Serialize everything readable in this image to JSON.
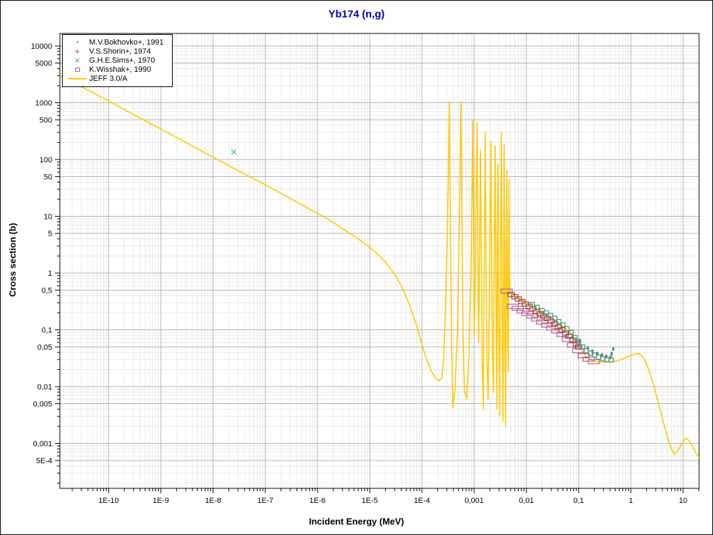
{
  "title": {
    "text": "Yb174 (n,g)",
    "color": "#0000aa"
  },
  "axis_titles": {
    "x": "Incident Energy (MeV)",
    "y": "Cross section (b)"
  },
  "legend": {
    "position": "top-left",
    "items": [
      {
        "label": "M.V.Bokhovko+, 1991",
        "symbol": "dot-marker",
        "glyph": "·",
        "color": "#4f8f78"
      },
      {
        "label": "V.S.Shorin+, 1974",
        "symbol": "plus-marker",
        "glyph": "+",
        "color": "#9c4444"
      },
      {
        "label": "G.H.E.Sims+, 1970",
        "symbol": "x-marker",
        "glyph": "×",
        "color": "#3fae9f"
      },
      {
        "label": "K.Wisshak+, 1990",
        "symbol": "square-marker",
        "glyph": "□",
        "color": "#b4638f"
      },
      {
        "label": "JEFF 3.0/A",
        "symbol": "line-marker",
        "glyph": "—",
        "color": "#ffc800"
      }
    ]
  },
  "colors": {
    "grid_major": "#b3b3b3",
    "grid_minor": "#e9e9e9",
    "frame": "#000000",
    "background": "#ffffff",
    "title": "#0000aa"
  },
  "chart_data": {
    "type": "line",
    "title": "Yb174 (n,g)",
    "xlabel": "Incident Energy (MeV)",
    "ylabel": "Cross section (b)",
    "x_scale": "log",
    "y_scale": "log",
    "x_range": [
      1.17e-11,
      20.3
    ],
    "y_range": [
      0.00017,
      16000
    ],
    "grid": true,
    "legend_position": "top-left",
    "x_ticks": [
      {
        "value": 1e-10,
        "label": "1E-10"
      },
      {
        "value": 1e-09,
        "label": "1E-9"
      },
      {
        "value": 1e-08,
        "label": "1E-8"
      },
      {
        "value": 1e-07,
        "label": "1E-7"
      },
      {
        "value": 1e-06,
        "label": "1E-6"
      },
      {
        "value": 1e-05,
        "label": "1E-5"
      },
      {
        "value": 0.0001,
        "label": "1E-4"
      },
      {
        "value": 0.001,
        "label": "0,001"
      },
      {
        "value": 0.01,
        "label": "0,01"
      },
      {
        "value": 0.1,
        "label": "0,1"
      },
      {
        "value": 1,
        "label": "1"
      },
      {
        "value": 10,
        "label": "10"
      }
    ],
    "y_ticks": [
      {
        "value": 10000,
        "label": "10000"
      },
      {
        "value": 5000,
        "label": "5000"
      },
      {
        "value": 1000,
        "label": "1000"
      },
      {
        "value": 500,
        "label": "500"
      },
      {
        "value": 100,
        "label": "100"
      },
      {
        "value": 50,
        "label": "50"
      },
      {
        "value": 10,
        "label": "10"
      },
      {
        "value": 5,
        "label": "5"
      },
      {
        "value": 1,
        "label": "1"
      },
      {
        "value": 0.5,
        "label": "0,5"
      },
      {
        "value": 0.1,
        "label": "0,1"
      },
      {
        "value": 0.05,
        "label": "0,05"
      },
      {
        "value": 0.01,
        "label": "0,01"
      },
      {
        "value": 0.005,
        "label": "0,005"
      },
      {
        "value": 0.001,
        "label": "0,001"
      },
      {
        "value": 0.0005,
        "label": "5E-4"
      }
    ],
    "series": [
      {
        "name": "JEFF 3.0/A",
        "type": "line",
        "color": "#ffc800",
        "marker": {
          "shape": "line"
        },
        "points": [
          [
            1.17e-11,
            3000
          ],
          [
            2e-11,
            2300
          ],
          [
            5e-11,
            1500
          ],
          [
            1e-10,
            1080
          ],
          [
            2e-10,
            760
          ],
          [
            5e-10,
            480
          ],
          [
            1e-09,
            345
          ],
          [
            2e-09,
            245
          ],
          [
            5e-09,
            155
          ],
          [
            1e-08,
            110
          ],
          [
            2e-08,
            78
          ],
          [
            5e-08,
            50
          ],
          [
            1e-07,
            36
          ],
          [
            2e-07,
            25.5
          ],
          [
            5e-07,
            16
          ],
          [
            1e-06,
            11.3
          ],
          [
            2e-06,
            7.8
          ],
          [
            5e-06,
            4.5
          ],
          [
            1e-05,
            2.85
          ],
          [
            1.5e-05,
            2.05
          ],
          [
            2e-05,
            1.55
          ],
          [
            3e-05,
            0.95
          ],
          [
            4e-05,
            0.6
          ],
          [
            5e-05,
            0.38
          ],
          [
            6e-05,
            0.25
          ],
          [
            8e-05,
            0.115
          ],
          [
            0.0001,
            0.055
          ],
          [
            0.00012,
            0.032
          ],
          [
            0.00015,
            0.019
          ],
          [
            0.00018,
            0.0145
          ],
          [
            0.00021,
            0.0125
          ],
          [
            0.00024,
            0.014
          ],
          [
            0.00026,
            0.03
          ],
          [
            0.00028,
            0.2
          ],
          [
            0.00031,
            8
          ],
          [
            0.000335,
            1050
          ],
          [
            0.00035,
            12
          ],
          [
            0.00037,
            0.05
          ],
          [
            0.00039,
            0.0042
          ],
          [
            0.00043,
            0.009
          ],
          [
            0.00048,
            0.1
          ],
          [
            0.00053,
            20
          ],
          [
            0.00056,
            1050
          ],
          [
            0.00058,
            15
          ],
          [
            0.00061,
            0.1
          ],
          [
            0.00065,
            0.0085
          ],
          [
            0.00072,
            0.006
          ],
          [
            0.0008,
            0.04
          ],
          [
            0.00088,
            2
          ],
          [
            0.00094,
            490
          ],
          [
            0.00097,
            6
          ],
          [
            0.001,
            0.08
          ],
          [
            0.00105,
            0.8
          ],
          [
            0.00113,
            450
          ],
          [
            0.00117,
            4
          ],
          [
            0.00122,
            0.06
          ],
          [
            0.00127,
            3
          ],
          [
            0.00132,
            145
          ],
          [
            0.00137,
            2
          ],
          [
            0.00143,
            0.025
          ],
          [
            0.0015,
            0.004
          ],
          [
            0.00156,
            1.5
          ],
          [
            0.00163,
            310
          ],
          [
            0.00168,
            3
          ],
          [
            0.00175,
            0.03
          ],
          [
            0.00185,
            0.006
          ],
          [
            0.00195,
            0.5
          ],
          [
            0.00209,
            210
          ],
          [
            0.00215,
            3
          ],
          [
            0.00223,
            0.04
          ],
          [
            0.00233,
            0.008
          ],
          [
            0.00243,
            6
          ],
          [
            0.00251,
            175
          ],
          [
            0.00258,
            2
          ],
          [
            0.00266,
            0.05
          ],
          [
            0.00273,
            0.004
          ],
          [
            0.00279,
            5
          ],
          [
            0.00284,
            82
          ],
          [
            0.0029,
            1
          ],
          [
            0.00298,
            0.05
          ],
          [
            0.00308,
            0.003
          ],
          [
            0.0032,
            4
          ],
          [
            0.00331,
            300
          ],
          [
            0.00338,
            3
          ],
          [
            0.00348,
            0.04
          ],
          [
            0.00358,
            0.0025
          ],
          [
            0.00367,
            2
          ],
          [
            0.00374,
            180
          ],
          [
            0.00381,
            1.5
          ],
          [
            0.0039,
            0.03
          ],
          [
            0.004,
            0.002
          ],
          [
            0.00412,
            1
          ],
          [
            0.00423,
            65
          ],
          [
            0.0043,
            0.9
          ],
          [
            0.0044,
            0.08
          ],
          [
            0.0045,
            0.018
          ],
          [
            0.00458,
            2
          ],
          [
            0.00464,
            45
          ],
          [
            0.00472,
            1.2
          ],
          [
            0.00482,
            0.5
          ],
          [
            0.00495,
            0.47
          ],
          [
            0.0055,
            0.43
          ],
          [
            0.007,
            0.37
          ],
          [
            0.009,
            0.32
          ],
          [
            0.012,
            0.27
          ],
          [
            0.016,
            0.225
          ],
          [
            0.022,
            0.185
          ],
          [
            0.03,
            0.155
          ],
          [
            0.04,
            0.13
          ],
          [
            0.05,
            0.115
          ],
          [
            0.06,
            0.1
          ],
          [
            0.07,
            0.088
          ],
          [
            0.08,
            0.072
          ],
          [
            0.09,
            0.058
          ],
          [
            0.105,
            0.047
          ],
          [
            0.125,
            0.038
          ],
          [
            0.15,
            0.0325
          ],
          [
            0.18,
            0.0295
          ],
          [
            0.22,
            0.0278
          ],
          [
            0.3,
            0.027
          ],
          [
            0.4,
            0.0272
          ],
          [
            0.55,
            0.0285
          ],
          [
            0.75,
            0.0315
          ],
          [
            1.0,
            0.0355
          ],
          [
            1.25,
            0.038
          ],
          [
            1.5,
            0.0375
          ],
          [
            1.8,
            0.031
          ],
          [
            2.2,
            0.02
          ],
          [
            2.7,
            0.011
          ],
          [
            3.3,
            0.0055
          ],
          [
            4.0,
            0.0028
          ],
          [
            4.8,
            0.0015
          ],
          [
            5.8,
            0.00085
          ],
          [
            6.8,
            0.00064
          ],
          [
            7.8,
            0.00072
          ],
          [
            9.0,
            0.00092
          ],
          [
            10.5,
            0.00115
          ],
          [
            11.5,
            0.00124
          ],
          [
            13,
            0.00112
          ],
          [
            15,
            0.00092
          ],
          [
            17.5,
            0.00068
          ],
          [
            20.3,
            0.00056
          ]
        ]
      },
      {
        "name": "K.Wisshak+, 1990",
        "type": "scatter",
        "color": "#b4638f",
        "marker": {
          "shape": "open-rect",
          "w": 16,
          "h": 6
        },
        "points": [
          [
            0.0042,
            0.48
          ],
          [
            0.0055,
            0.26
          ],
          [
            0.0068,
            0.24
          ],
          [
            0.0085,
            0.215
          ],
          [
            0.0105,
            0.195
          ],
          [
            0.013,
            0.175
          ],
          [
            0.016,
            0.155
          ],
          [
            0.02,
            0.138
          ],
          [
            0.025,
            0.122
          ],
          [
            0.031,
            0.108
          ],
          [
            0.039,
            0.096
          ],
          [
            0.049,
            0.083
          ],
          [
            0.062,
            0.068
          ],
          [
            0.078,
            0.054
          ],
          [
            0.098,
            0.043
          ],
          [
            0.125,
            0.035
          ],
          [
            0.155,
            0.0305
          ],
          [
            0.195,
            0.0275
          ]
        ]
      },
      {
        "name": "V.S.Shorin+, 1974",
        "type": "scatter",
        "color": "#9c4444",
        "marker": {
          "shape": "open-rect",
          "w": 9,
          "h": 6
        },
        "points": [
          [
            0.0051,
            0.42
          ],
          [
            0.006,
            0.385
          ],
          [
            0.007,
            0.35
          ],
          [
            0.0082,
            0.315
          ],
          [
            0.0096,
            0.285
          ],
          [
            0.0113,
            0.26
          ],
          [
            0.0133,
            0.235
          ],
          [
            0.0156,
            0.213
          ],
          [
            0.0183,
            0.193
          ],
          [
            0.0215,
            0.175
          ],
          [
            0.0252,
            0.158
          ],
          [
            0.0296,
            0.142
          ],
          [
            0.0347,
            0.127
          ],
          [
            0.0408,
            0.113
          ],
          [
            0.0479,
            0.1
          ],
          [
            0.0562,
            0.088
          ],
          [
            0.066,
            0.077
          ],
          [
            0.0774,
            0.066
          ],
          [
            0.0909,
            0.056
          ],
          [
            0.1,
            0.05
          ]
        ]
      },
      {
        "name": "M.V.Bokhovko+, 1991",
        "type": "scatter",
        "color": "#4f8f78",
        "marker": {
          "shape": "open-rect",
          "w": 6,
          "h": 6
        },
        "points": [
          [
            0.013,
            0.28
          ],
          [
            0.016,
            0.25
          ],
          [
            0.02,
            0.22
          ],
          [
            0.024,
            0.2
          ],
          [
            0.029,
            0.18
          ],
          [
            0.035,
            0.16
          ],
          [
            0.042,
            0.14
          ],
          [
            0.05,
            0.122
          ],
          [
            0.06,
            0.105
          ],
          [
            0.072,
            0.09
          ],
          [
            0.086,
            0.073
          ],
          [
            0.1,
            0.06
          ],
          [
            0.12,
            0.05
          ],
          [
            0.14,
            0.043
          ],
          [
            0.17,
            0.039
          ],
          [
            0.2,
            0.036
          ],
          [
            0.24,
            0.033
          ],
          [
            0.29,
            0.031
          ],
          [
            0.35,
            0.03
          ],
          [
            0.42,
            0.0295
          ]
        ]
      },
      {
        "name": "M.V.Bokhovko+, 1991 (points)",
        "type": "scatter",
        "color": "#4f8f78",
        "marker": {
          "shape": "filled-rect",
          "w": 3,
          "h": 5
        },
        "points": [
          [
            0.105,
            0.065
          ],
          [
            0.15,
            0.048
          ],
          [
            0.185,
            0.042
          ],
          [
            0.23,
            0.038
          ],
          [
            0.28,
            0.036
          ],
          [
            0.34,
            0.034
          ],
          [
            0.41,
            0.033
          ],
          [
            0.43,
            0.038
          ],
          [
            0.46,
            0.046
          ]
        ]
      },
      {
        "name": "G.H.E.Sims+, 1970",
        "type": "scatter",
        "color": "#3fae9f",
        "marker": {
          "shape": "x-cross",
          "w": 7,
          "h": 7
        },
        "points": [
          [
            2.5e-08,
            135
          ]
        ]
      }
    ]
  }
}
